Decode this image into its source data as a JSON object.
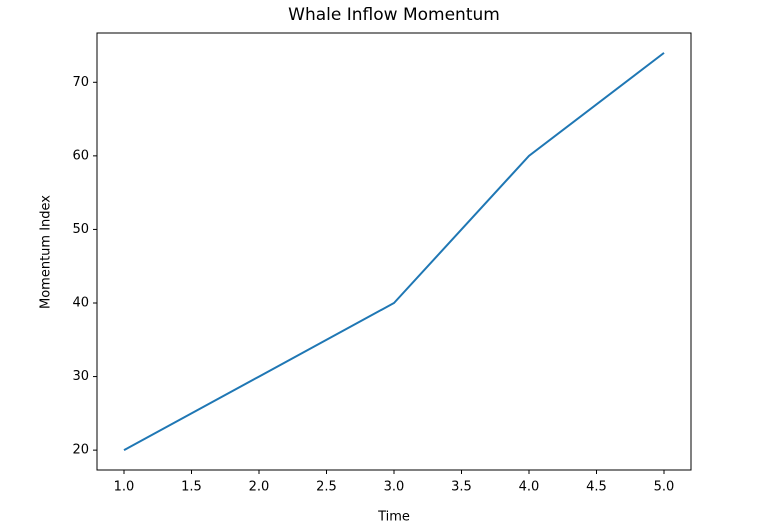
{
  "chart_data": {
    "type": "line",
    "title": "Whale Inflow Momentum",
    "x_label": "Time",
    "y_label": "Momentum Index",
    "x": [
      1,
      2,
      3,
      4,
      5
    ],
    "series": [
      {
        "name": "Momentum Index",
        "color": "#1f77b4",
        "values": [
          20,
          30,
          40,
          60,
          74
        ]
      }
    ],
    "xlim": [
      0.8,
      5.2
    ],
    "xticks": [
      {
        "value": 1,
        "label": "1.0"
      },
      {
        "value": 1.5,
        "label": "1.5"
      },
      {
        "value": 2,
        "label": "2.0"
      },
      {
        "value": 2.5,
        "label": "2.5"
      },
      {
        "value": 3,
        "label": "3.0"
      },
      {
        "value": 3.5,
        "label": "3.5"
      },
      {
        "value": 4,
        "label": "4.0"
      },
      {
        "value": 4.5,
        "label": "4.5"
      },
      {
        "value": 5,
        "label": "5.0"
      }
    ],
    "ylim": [
      17.3,
      76.7
    ],
    "yticks": [
      20,
      30,
      40,
      50,
      60,
      70
    ],
    "grid": false
  }
}
